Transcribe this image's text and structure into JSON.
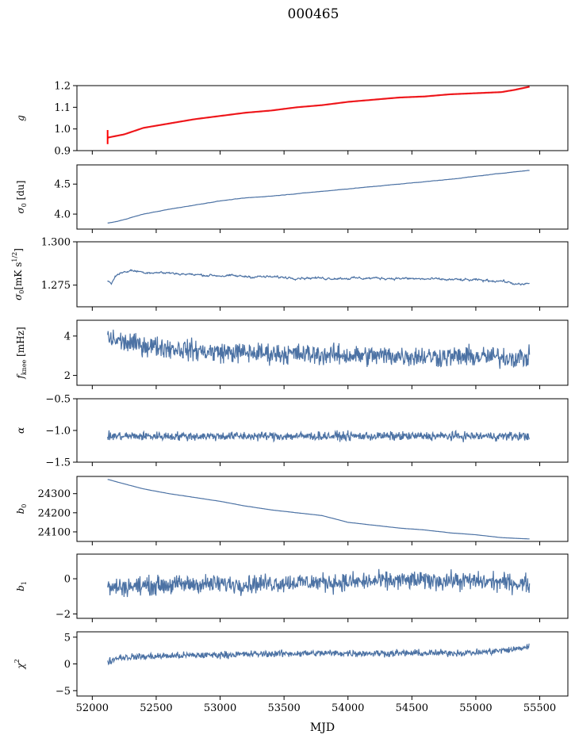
{
  "title": "000465",
  "xlabel": "MJD",
  "xlim": [
    51880,
    55720
  ],
  "xticks": [
    52000,
    52500,
    53000,
    53500,
    54000,
    54500,
    55000,
    55500
  ],
  "colors": {
    "series": "#4c72a4",
    "fit": "#ff0000",
    "axis": "#000000"
  },
  "chart_data": [
    {
      "id": "g",
      "type": "line",
      "ylabel": "g",
      "ylabel_sub": "",
      "ylim": [
        0.9,
        1.2
      ],
      "yticks": [
        0.9,
        1.0,
        1.1,
        1.2
      ],
      "x_range": [
        52120,
        55420
      ],
      "anchors": [
        [
          52120,
          0.96
        ],
        [
          52250,
          0.975
        ],
        [
          52400,
          1.005
        ],
        [
          52600,
          1.025
        ],
        [
          52800,
          1.045
        ],
        [
          53000,
          1.06
        ],
        [
          53200,
          1.075
        ],
        [
          53400,
          1.085
        ],
        [
          53600,
          1.1
        ],
        [
          53800,
          1.11
        ],
        [
          54000,
          1.125
        ],
        [
          54200,
          1.135
        ],
        [
          54400,
          1.145
        ],
        [
          54600,
          1.15
        ],
        [
          54800,
          1.16
        ],
        [
          55000,
          1.165
        ],
        [
          55200,
          1.17
        ],
        [
          55300,
          1.18
        ],
        [
          55420,
          1.195
        ]
      ],
      "noise": 0.002,
      "fit_overlay": true
    },
    {
      "id": "sigma0",
      "type": "line",
      "ylabel": "σ",
      "ylabel_sub": "0",
      "ylabel_suffix": " [du]",
      "ylim": [
        3.75,
        4.82
      ],
      "yticks": [
        4.0,
        4.5
      ],
      "x_range": [
        52120,
        55420
      ],
      "anchors": [
        [
          52120,
          3.85
        ],
        [
          52200,
          3.88
        ],
        [
          52400,
          4.0
        ],
        [
          52600,
          4.08
        ],
        [
          52800,
          4.15
        ],
        [
          53000,
          4.22
        ],
        [
          53200,
          4.27
        ],
        [
          53400,
          4.3
        ],
        [
          53600,
          4.34
        ],
        [
          53800,
          4.38
        ],
        [
          54000,
          4.42
        ],
        [
          54200,
          4.46
        ],
        [
          54400,
          4.5
        ],
        [
          54600,
          4.54
        ],
        [
          54800,
          4.58
        ],
        [
          55000,
          4.63
        ],
        [
          55200,
          4.68
        ],
        [
          55420,
          4.73
        ]
      ],
      "noise": 0.006
    },
    {
      "id": "sigma0b",
      "type": "line",
      "ylabel": "σ",
      "ylabel_sub": "0",
      "ylabel_suffix": "[mK s",
      "ylabel_sup": "1/2",
      "ylabel_end": "]",
      "ylim": [
        1.2625,
        1.3
      ],
      "yticks": [
        1.275,
        1.3
      ],
      "x_range": [
        52120,
        55420
      ],
      "anchors": [
        [
          52120,
          1.2775
        ],
        [
          52150,
          1.2765
        ],
        [
          52200,
          1.2815
        ],
        [
          52300,
          1.2835
        ],
        [
          52400,
          1.2825
        ],
        [
          52600,
          1.282
        ],
        [
          52800,
          1.281
        ],
        [
          53000,
          1.2805
        ],
        [
          53200,
          1.28
        ],
        [
          53500,
          1.2795
        ],
        [
          53800,
          1.279
        ],
        [
          54000,
          1.279
        ],
        [
          54300,
          1.279
        ],
        [
          54600,
          1.2785
        ],
        [
          54900,
          1.278
        ],
        [
          55200,
          1.2775
        ],
        [
          55350,
          1.275
        ],
        [
          55420,
          1.276
        ]
      ],
      "noise": 0.0008
    },
    {
      "id": "fknee",
      "type": "line",
      "ylabel": "f",
      "ylabel_sub": "knee",
      "ylabel_suffix": " [mHz]",
      "ylim": [
        1.5,
        4.8
      ],
      "yticks": [
        2,
        4
      ],
      "x_range": [
        52120,
        55420
      ],
      "anchors": [
        [
          52120,
          3.9
        ],
        [
          52300,
          3.6
        ],
        [
          52600,
          3.4
        ],
        [
          52900,
          3.2
        ],
        [
          53200,
          3.15
        ],
        [
          53500,
          3.1
        ],
        [
          53800,
          3.05
        ],
        [
          54100,
          3.0
        ],
        [
          54400,
          3.0
        ],
        [
          54700,
          2.95
        ],
        [
          55000,
          2.95
        ],
        [
          55420,
          2.9
        ]
      ],
      "noise": 0.45
    },
    {
      "id": "alpha",
      "type": "line",
      "ylabel": "α",
      "ylabel_sub": "",
      "ylim": [
        -1.5,
        -0.5
      ],
      "yticks": [
        -1.5,
        -1.0,
        -0.5
      ],
      "x_range": [
        52120,
        55420
      ],
      "anchors": [
        [
          52120,
          -1.09
        ],
        [
          55420,
          -1.09
        ]
      ],
      "noise": 0.06
    },
    {
      "id": "b0",
      "type": "line",
      "ylabel": "b",
      "ylabel_sub": "0",
      "ylim": [
        24050,
        24390
      ],
      "yticks": [
        24100,
        24200,
        24300
      ],
      "x_range": [
        52120,
        55420
      ],
      "anchors": [
        [
          52120,
          24375
        ],
        [
          52200,
          24360
        ],
        [
          52400,
          24325
        ],
        [
          52600,
          24300
        ],
        [
          52800,
          24280
        ],
        [
          53000,
          24260
        ],
        [
          53200,
          24235
        ],
        [
          53400,
          24215
        ],
        [
          53600,
          24200
        ],
        [
          53800,
          24185
        ],
        [
          54000,
          24150
        ],
        [
          54200,
          24135
        ],
        [
          54400,
          24120
        ],
        [
          54600,
          24110
        ],
        [
          54800,
          24095
        ],
        [
          55000,
          24085
        ],
        [
          55200,
          24070
        ],
        [
          55420,
          24063
        ]
      ],
      "noise": 0.8
    },
    {
      "id": "b1",
      "type": "line",
      "ylabel": "b",
      "ylabel_sub": "1",
      "ylim": [
        -2.25,
        1.4
      ],
      "yticks": [
        -2,
        0
      ],
      "x_range": [
        52120,
        55420
      ],
      "anchors": [
        [
          52120,
          -0.5
        ],
        [
          52400,
          -0.4
        ],
        [
          52800,
          -0.3
        ],
        [
          53200,
          -0.3
        ],
        [
          53600,
          -0.2
        ],
        [
          54000,
          -0.2
        ],
        [
          54400,
          -0.1
        ],
        [
          54800,
          -0.1
        ],
        [
          55200,
          -0.2
        ],
        [
          55420,
          -0.3
        ]
      ],
      "noise": 0.45
    },
    {
      "id": "chi2",
      "type": "line",
      "ylabel": "χ",
      "ylabel_sub": "",
      "ylabel_sup": "2",
      "ylim": [
        -6,
        6
      ],
      "yticks": [
        -5,
        0,
        5
      ],
      "x_range": [
        52120,
        55420
      ],
      "anchors": [
        [
          52120,
          0.3
        ],
        [
          52200,
          1.2
        ],
        [
          52600,
          1.5
        ],
        [
          53000,
          1.7
        ],
        [
          53400,
          1.9
        ],
        [
          53800,
          2.0
        ],
        [
          54200,
          2.0
        ],
        [
          54600,
          2.0
        ],
        [
          55000,
          2.1
        ],
        [
          55300,
          2.7
        ],
        [
          55420,
          3.3
        ]
      ],
      "noise": 0.55
    }
  ]
}
